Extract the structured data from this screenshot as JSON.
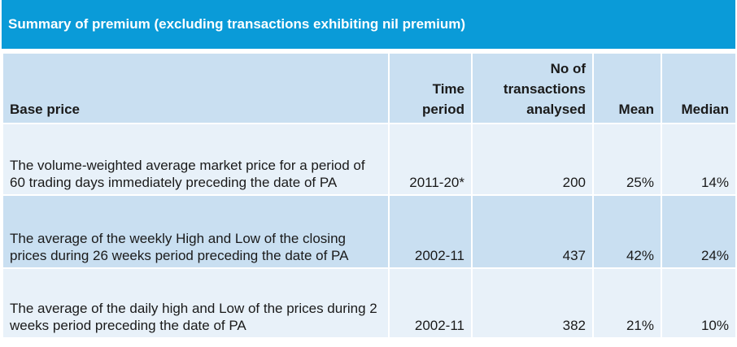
{
  "title": "Summary of premium (excluding transactions exhibiting nil premium)",
  "headers": {
    "base_price": "Base price",
    "time_period_line1": "Time",
    "time_period_line2": "period",
    "no_tx_line1": "No of",
    "no_tx_line2": "transactions",
    "no_tx_line3": "analysed",
    "mean": "Mean",
    "median": "Median"
  },
  "rows": [
    {
      "base_price": "The volume-weighted average market price for a period of 60 trading days immediately preceding the date of PA",
      "time_period": "2011-20*",
      "transactions": "200",
      "mean": "25%",
      "median": "14%"
    },
    {
      "base_price": "The average of the weekly High and Low of the closing prices during 26 weeks period preceding the date of PA",
      "time_period": "2002-11",
      "transactions": "437",
      "mean": "42%",
      "median": "24%"
    },
    {
      "base_price": "The average of the daily high and Low of the prices during 2 weeks period preceding the date of PA",
      "time_period": "2002-11",
      "transactions": "382",
      "mean": "21%",
      "median": "10%"
    }
  ]
}
